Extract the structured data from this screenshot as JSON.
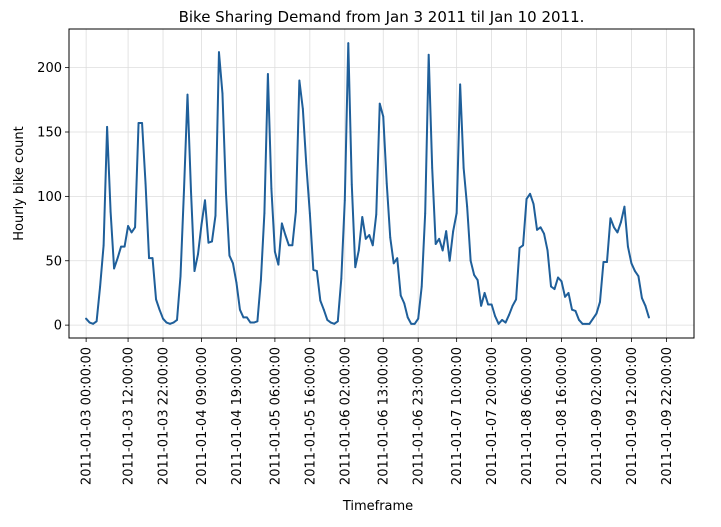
{
  "chart_data": {
    "type": "line",
    "title": "Bike Sharing Demand from Jan 3 2011 til Jan 10 2011.",
    "xlabel": "Timeframe",
    "ylabel": "Hourly bike count",
    "ylim": [
      -10,
      230
    ],
    "yticks": [
      0,
      50,
      100,
      150,
      200
    ],
    "xtick_labels": [
      "2011-01-03 00:00:00",
      "2011-01-03 12:00:00",
      "2011-01-03 22:00:00",
      "2011-01-04 09:00:00",
      "2011-01-04 19:00:00",
      "2011-01-05 06:00:00",
      "2011-01-05 16:00:00",
      "2011-01-06 02:00:00",
      "2011-01-06 13:00:00",
      "2011-01-06 23:00:00",
      "2011-01-07 10:00:00",
      "2011-01-07 20:00:00",
      "2011-01-08 06:00:00",
      "2011-01-08 16:00:00",
      "2011-01-09 02:00:00",
      "2011-01-09 12:00:00",
      "2011-01-09 22:00:00"
    ],
    "grid": true,
    "line_color": "#1f5f9a",
    "series": [
      {
        "x_start": "2011-01-03 00:00:00",
        "x_step_hours": 1,
        "values": [
          5,
          2,
          1,
          3,
          30,
          62,
          154,
          88,
          44,
          52,
          61,
          61,
          77,
          72,
          76,
          157,
          157,
          110,
          52,
          52,
          20,
          12,
          5,
          2,
          1,
          2,
          4,
          38,
          105,
          179,
          104,
          42,
          55,
          78,
          97,
          64,
          65,
          85,
          212,
          180,
          103,
          54,
          48,
          33,
          12,
          6,
          6,
          2,
          2,
          3,
          35,
          87,
          195,
          106,
          57,
          47,
          79,
          70,
          62,
          62,
          88,
          190,
          168,
          124,
          87,
          43,
          42,
          19,
          12,
          4,
          2,
          1,
          3,
          36,
          97,
          219,
          109,
          45,
          58,
          84,
          67,
          70,
          62,
          86,
          172,
          162,
          110,
          68,
          48,
          52,
          23,
          17,
          6,
          1,
          1,
          5,
          30,
          87,
          210,
          122,
          63,
          67,
          58,
          73,
          50,
          73,
          87,
          187,
          122,
          92,
          50,
          39,
          35,
          15,
          25,
          16,
          16,
          7,
          1,
          4,
          2,
          8,
          15,
          20,
          60,
          62,
          98,
          102,
          94,
          74,
          76,
          71,
          58,
          30,
          28,
          37,
          34,
          22,
          25,
          12,
          11,
          4,
          1,
          1,
          1,
          5,
          9,
          18,
          49,
          49,
          83,
          76,
          72,
          80,
          92,
          61,
          48,
          42,
          38,
          21,
          15,
          6
        ]
      }
    ]
  }
}
